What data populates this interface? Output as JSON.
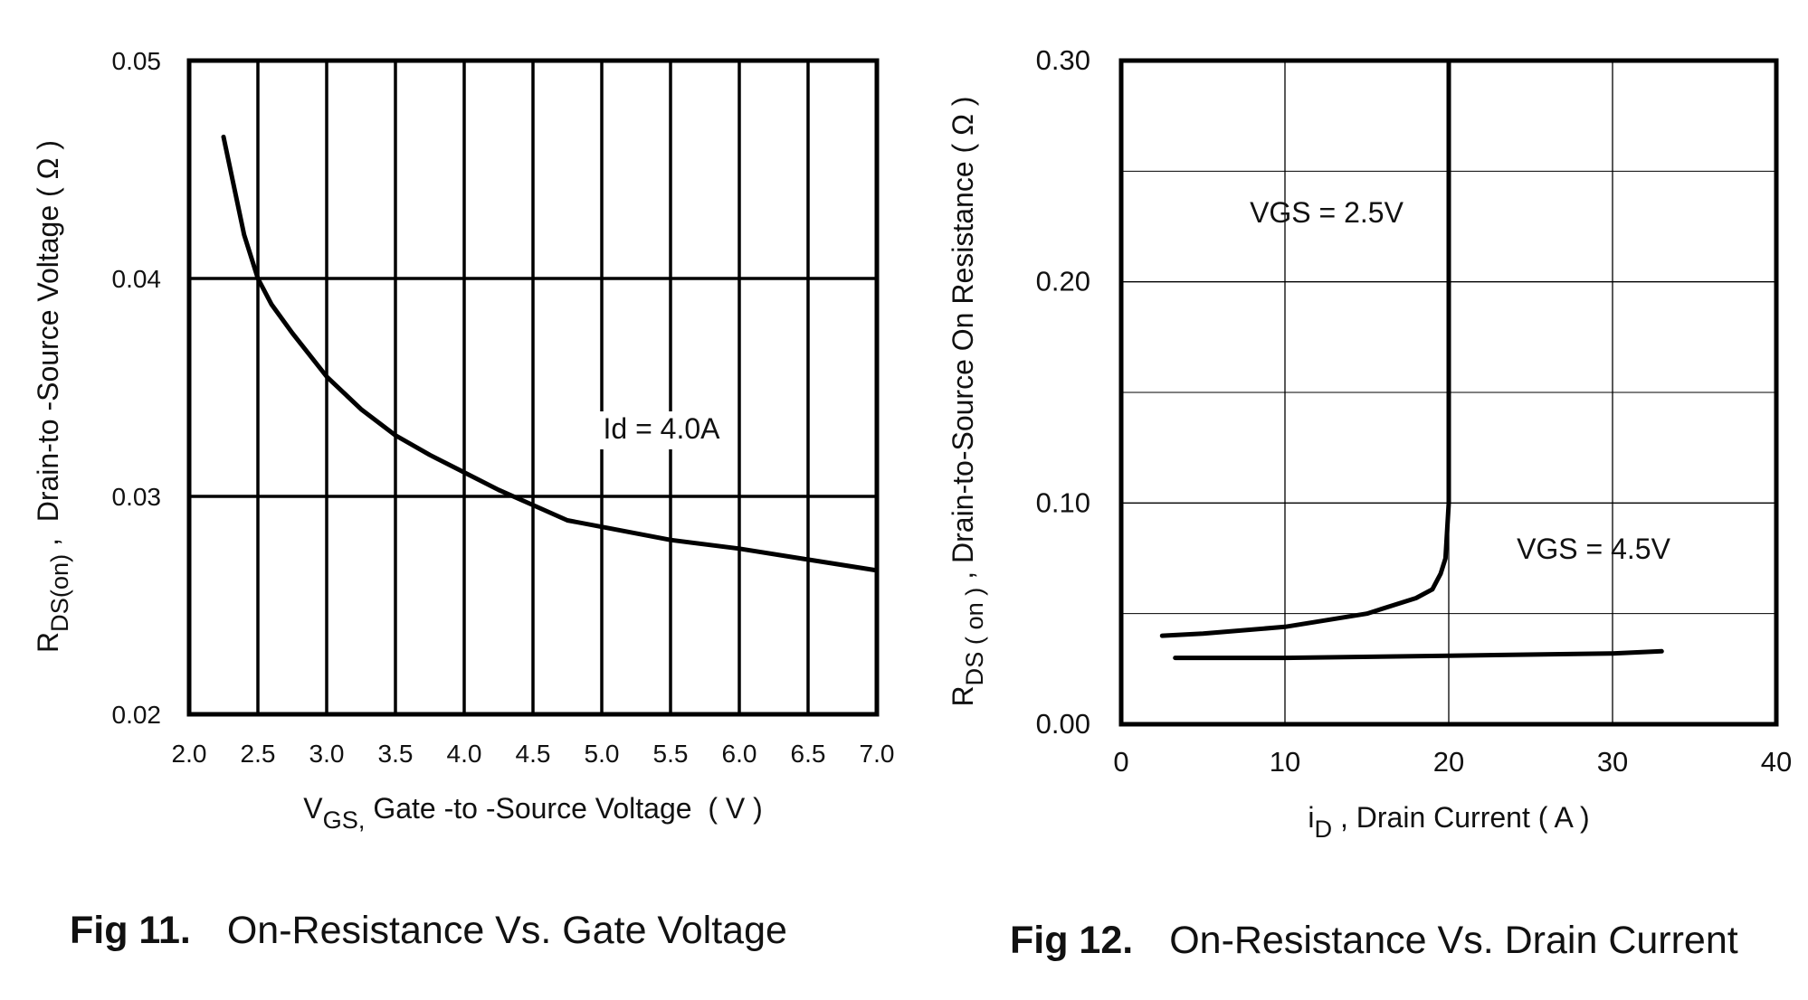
{
  "chart_data": [
    {
      "type": "line",
      "fig_label": "Fig 11.",
      "title": "On-Resistance Vs. Gate Voltage",
      "xlabel": {
        "symbol": "V",
        "subscript": "GS,",
        "text": " Gate -to -Source Voltage  ( V )"
      },
      "ylabel": {
        "symbol": "R",
        "subscript": "DS(on)",
        "text": " ,  Drain-to -Source Voltage ( Ω )"
      },
      "annotation": "Id = 4.0A",
      "x": [
        2.25,
        2.4,
        2.5,
        2.6,
        2.75,
        3.0,
        3.25,
        3.5,
        3.75,
        4.0,
        4.25,
        4.5,
        4.75,
        5.0,
        5.5,
        6.0,
        6.5,
        7.0
      ],
      "values": [
        0.0465,
        0.042,
        0.04,
        0.0388,
        0.0375,
        0.0355,
        0.034,
        0.0328,
        0.0319,
        0.0311,
        0.0303,
        0.0296,
        0.0289,
        0.0286,
        0.028,
        0.0276,
        0.0271,
        0.0266
      ],
      "color": "#000000",
      "xlim": [
        2,
        7
      ],
      "ylim": [
        0.02,
        0.05
      ],
      "xticks": [
        {
          "value": 2,
          "label": "2.0"
        },
        2.5,
        {
          "value": 3,
          "label": "3.0"
        },
        3.5,
        {
          "value": 4,
          "label": "4.0"
        },
        4.5,
        {
          "value": 5,
          "label": "5.0"
        },
        5.5,
        {
          "value": 6,
          "label": "6.0"
        },
        6.5,
        {
          "value": 7,
          "label": "7.0"
        }
      ],
      "yticks": [
        0.02,
        0.03,
        0.04,
        0.05
      ],
      "grid": true
    },
    {
      "type": "line",
      "fig_label": "Fig 12.",
      "title": "On-Resistance Vs. Drain Current",
      "xlabel": {
        "symbol": "i",
        "subscript": "D",
        "text": " , Drain Current ( A )"
      },
      "ylabel": {
        "symbol": "R",
        "subscript": "DS ( on )",
        "text": " , Drain-to-Source On Resistance ( Ω )"
      },
      "series": [
        {
          "name": "VGS = 2.5V",
          "color": "#000000",
          "x": [
            2.5,
            5,
            10,
            15,
            18,
            19,
            19.5,
            19.8,
            20,
            20,
            20
          ],
          "values": [
            0.04,
            0.041,
            0.044,
            0.05,
            0.057,
            0.061,
            0.068,
            0.075,
            0.1,
            0.2,
            0.3
          ]
        },
        {
          "name": "VGS = 4.5V",
          "color": "#000000",
          "x": [
            3.3,
            10,
            20,
            30,
            33
          ],
          "values": [
            0.03,
            0.03,
            0.031,
            0.032,
            0.033
          ]
        }
      ],
      "xlim": [
        0,
        40
      ],
      "ylim": [
        0,
        0.3
      ],
      "xticks": [
        0,
        10,
        20,
        30,
        40
      ],
      "yticks": [
        {
          "value": 0,
          "label": "0.00"
        },
        {
          "value": 0.1,
          "label": "0.10"
        },
        {
          "value": 0.2,
          "label": "0.20"
        },
        {
          "value": 0.3,
          "label": "0.30"
        }
      ],
      "minor_yticks": [
        0.05,
        0.15,
        0.25
      ],
      "grid": true
    }
  ]
}
